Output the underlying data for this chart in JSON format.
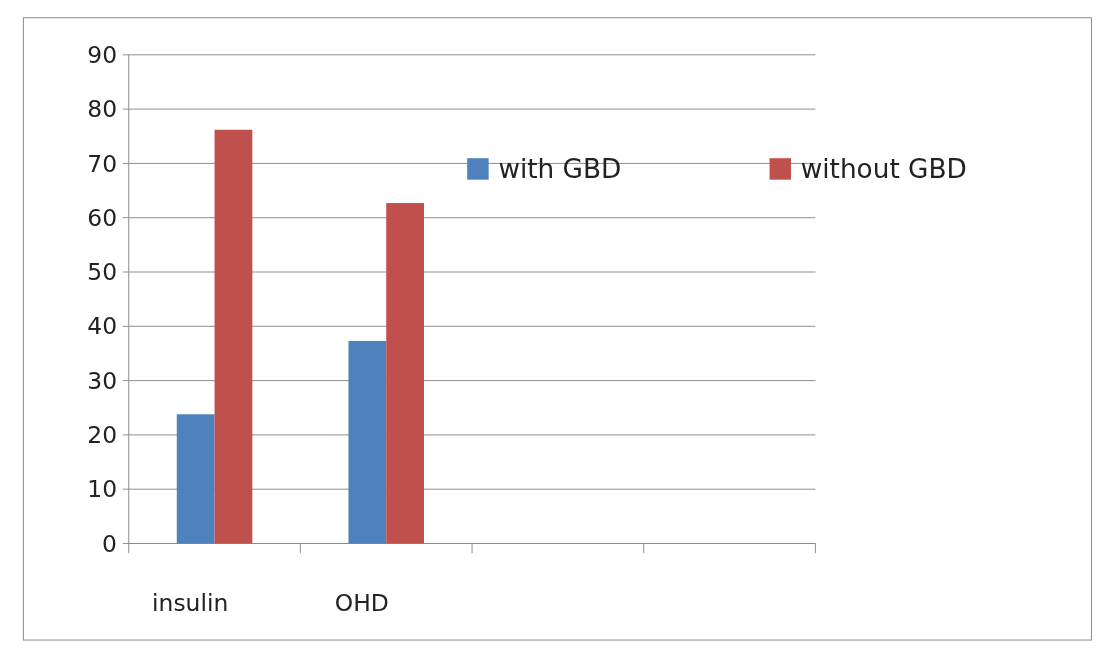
{
  "chart_data": {
    "type": "bar",
    "categories": [
      "insulin",
      "OHD",
      null,
      null
    ],
    "series": [
      {
        "name": "with GBD",
        "color": "#4f81bd",
        "values": [
          23.8,
          37.3,
          null,
          null
        ]
      },
      {
        "name": "without GBD",
        "color": "#c0504d",
        "values": [
          76.2,
          62.7,
          null,
          null
        ]
      }
    ],
    "ylim": [
      0,
      90
    ],
    "yticks": [
      0,
      10,
      20,
      30,
      40,
      50,
      60,
      70,
      80,
      90
    ],
    "grid": "y",
    "legend": "right"
  }
}
